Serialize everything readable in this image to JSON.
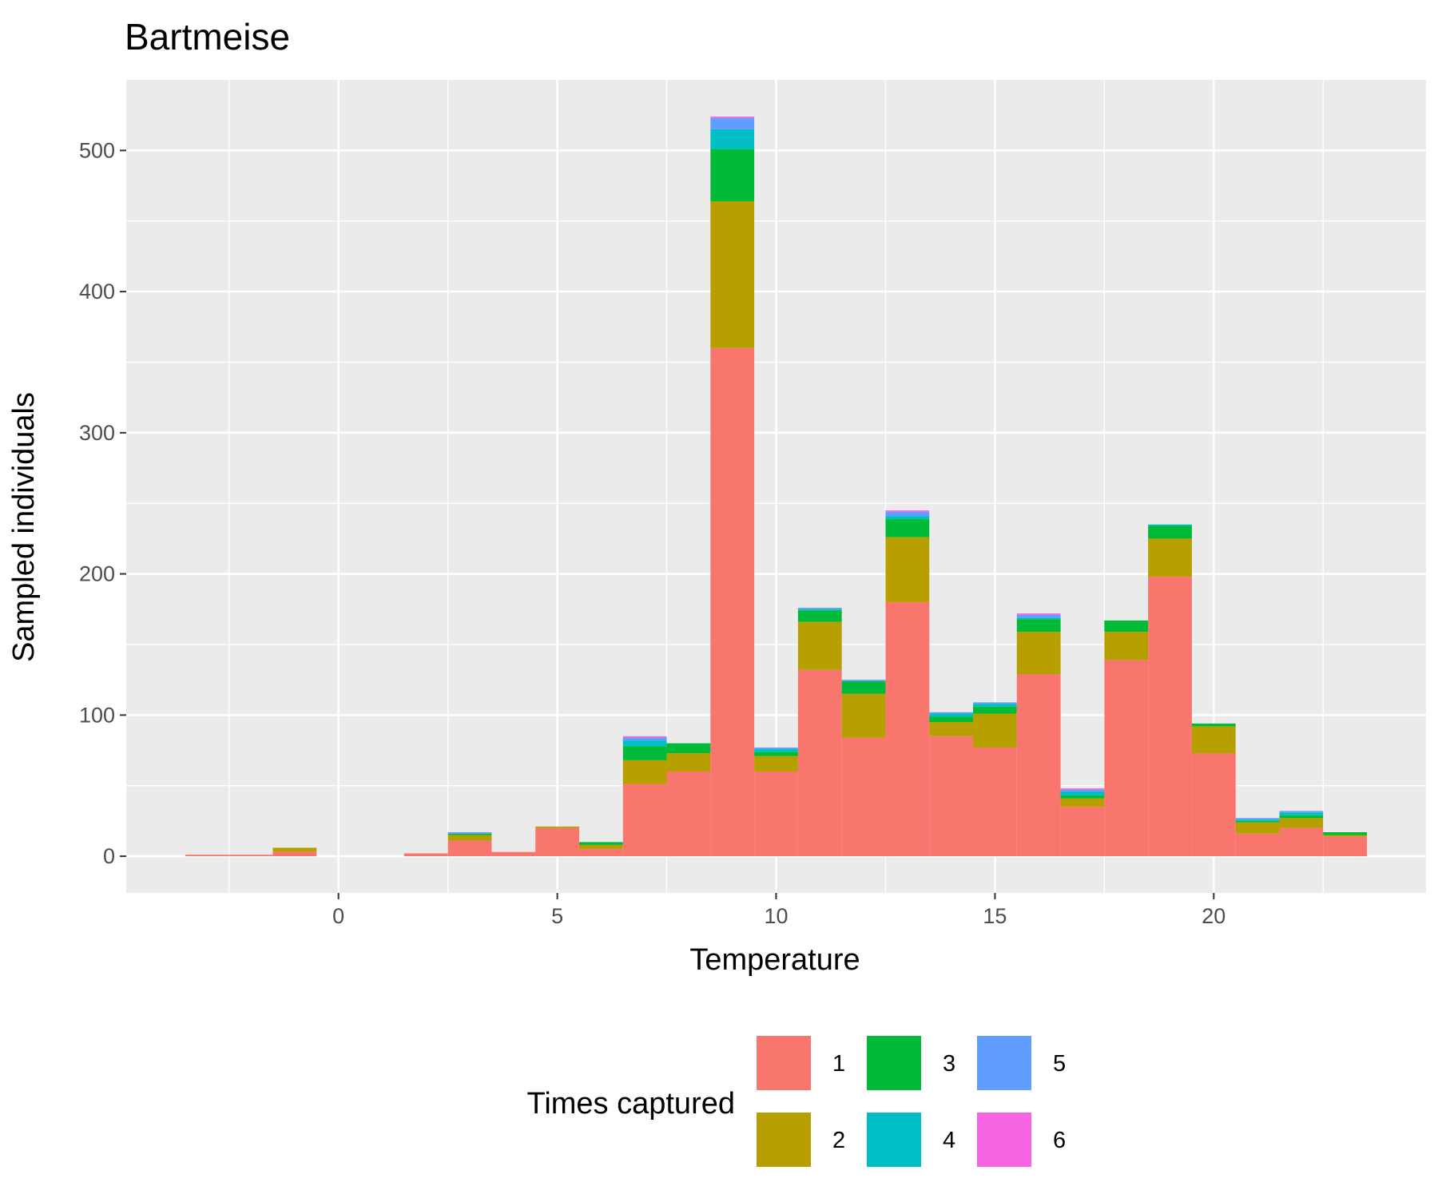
{
  "chart_data": {
    "type": "bar",
    "title": "Bartmeise",
    "xlabel": "Temperature",
    "ylabel": "Sampled individuals",
    "xlim": [
      -4.85,
      24.85
    ],
    "ylim": [
      -26,
      550
    ],
    "x_ticks": [
      0,
      5,
      10,
      15,
      20
    ],
    "y_ticks": [
      0,
      100,
      200,
      300,
      400,
      500
    ],
    "x_minor_ticks": [
      -2.5,
      2.5,
      7.5,
      12.5,
      17.5,
      22.5
    ],
    "y_minor_ticks": [
      50,
      150,
      250,
      350,
      450
    ],
    "grid": true,
    "bin_width": 1,
    "bins": [
      -3,
      -2,
      -1,
      0,
      1,
      2,
      3,
      4,
      5,
      6,
      7,
      8,
      9,
      10,
      11,
      12,
      13,
      14,
      15,
      16,
      17,
      18,
      19,
      20,
      21,
      22,
      23
    ],
    "series": [
      {
        "name": "1",
        "color": "#F8766D",
        "values": [
          1,
          1,
          3,
          0,
          0,
          2,
          11,
          3,
          20,
          5,
          51,
          60,
          360,
          60,
          132,
          84,
          180,
          85,
          77,
          129,
          35,
          139,
          198,
          73,
          16,
          20,
          14
        ]
      },
      {
        "name": "2",
        "color": "#B79F00",
        "values": [
          0,
          0,
          3,
          0,
          0,
          0,
          4,
          0,
          1,
          3,
          17,
          13,
          104,
          11,
          34,
          31,
          46,
          10,
          24,
          30,
          6,
          20,
          27,
          19,
          8,
          7,
          1
        ]
      },
      {
        "name": "3",
        "color": "#00BA38",
        "values": [
          0,
          0,
          0,
          0,
          0,
          0,
          1,
          0,
          0,
          2,
          10,
          7,
          37,
          3,
          8,
          9,
          13,
          4,
          5,
          9,
          2,
          8,
          9,
          2,
          1,
          2,
          2
        ]
      },
      {
        "name": "4",
        "color": "#00BFC4",
        "values": [
          0,
          0,
          0,
          0,
          0,
          0,
          0,
          0,
          0,
          0,
          4,
          0,
          14,
          2,
          1,
          0,
          2,
          2,
          2,
          1,
          3,
          0,
          1,
          0,
          1,
          2,
          0
        ]
      },
      {
        "name": "5",
        "color": "#619CFF",
        "values": [
          0,
          0,
          0,
          0,
          0,
          0,
          1,
          0,
          0,
          0,
          2,
          0,
          8,
          1,
          1,
          1,
          3,
          1,
          1,
          2,
          1,
          0,
          0,
          0,
          1,
          1,
          0
        ]
      },
      {
        "name": "6",
        "color": "#F564E3",
        "values": [
          0,
          0,
          0,
          0,
          0,
          0,
          0,
          0,
          0,
          0,
          1,
          0,
          1,
          0,
          0,
          0,
          1,
          0,
          0,
          1,
          1,
          0,
          0,
          0,
          0,
          0,
          0
        ]
      }
    ],
    "legend": {
      "title": "Times captured",
      "position": "bottom",
      "entries": [
        "1",
        "2",
        "3",
        "4",
        "5",
        "6"
      ]
    },
    "colors": {
      "panel_background": "#EBEBEB",
      "grid_major": "#FFFFFF",
      "grid_minor": "#F7F7F7"
    }
  }
}
